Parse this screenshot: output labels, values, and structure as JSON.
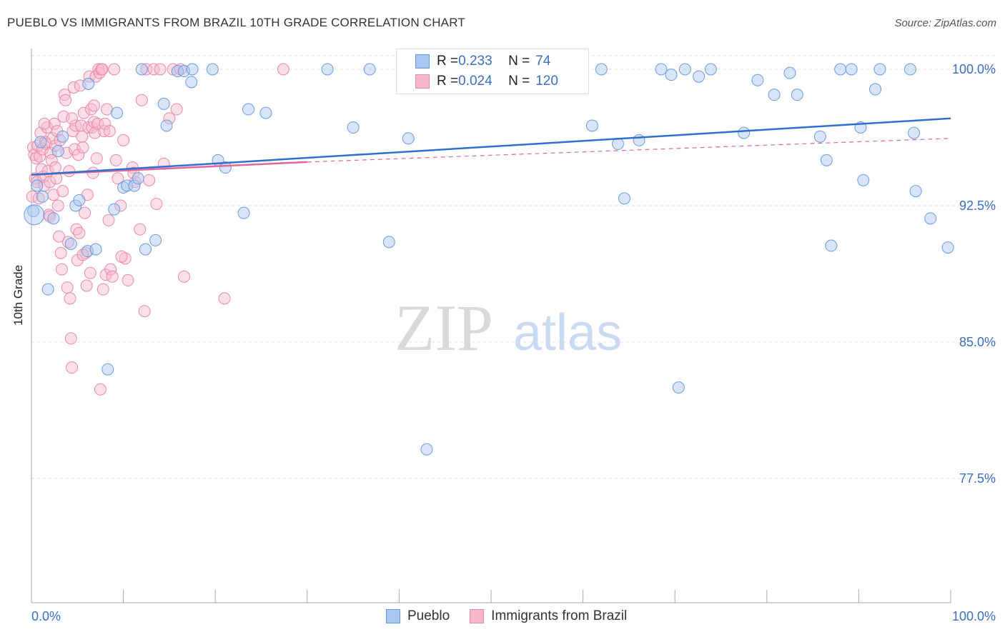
{
  "title": "PUEBLO VS IMMIGRANTS FROM BRAZIL 10TH GRADE CORRELATION CHART",
  "source": "Source: ZipAtlas.com",
  "watermark": {
    "zip": "ZIP",
    "atlas": "atlas"
  },
  "legend": {
    "pueblo": {
      "r_label": "R = ",
      "r": "0.233",
      "n_label": "N = ",
      "n": "74"
    },
    "brazil": {
      "r_label": "R = ",
      "r": "0.024",
      "n_label": "N = ",
      "n": "120"
    }
  },
  "colors": {
    "pueblo_fill": "#a9c6ef",
    "pueblo_stroke": "#6a9be0",
    "pueblo_line": "#2f6fcf",
    "brazil_fill": "#f7b7c9",
    "brazil_stroke": "#e98aa8",
    "brazil_line": "#e0679a",
    "tick_label": "#3a6fc4",
    "grid": "#e3e3e3"
  },
  "chart_data": {
    "type": "scatter",
    "title": "PUEBLO VS IMMIGRANTS FROM BRAZIL 10TH GRADE CORRELATION CHART",
    "xlabel": "",
    "ylabel": "10th Grade",
    "xlim": [
      0,
      100
    ],
    "ylim": [
      70,
      101
    ],
    "x_tick_labels": [
      "0.0%",
      "100.0%"
    ],
    "y_ticks": [
      77.5,
      85.0,
      92.5,
      100.0
    ],
    "y_tick_labels": [
      "77.5%",
      "85.0%",
      "92.5%",
      "100.0%"
    ],
    "grid": "horizontal dashed",
    "legend_position": "bottom-center",
    "series": [
      {
        "name": "Pueblo",
        "r": 0.233,
        "n": 74,
        "trend": {
          "x": [
            0,
            100
          ],
          "y": [
            94.2,
            97.3
          ],
          "extends_dashed": false
        },
        "points": [
          [
            0.2,
            92.2
          ],
          [
            0.6,
            93.6
          ],
          [
            1.0,
            96.0
          ],
          [
            1.2,
            93.0
          ],
          [
            1.8,
            87.9
          ],
          [
            2.4,
            91.8
          ],
          [
            2.9,
            95.5
          ],
          [
            3.4,
            96.3
          ],
          [
            4.3,
            90.4
          ],
          [
            4.8,
            92.5
          ],
          [
            5.2,
            92.8
          ],
          [
            6.1,
            90.0
          ],
          [
            6.2,
            99.2
          ],
          [
            7.0,
            90.1
          ],
          [
            8.3,
            83.5
          ],
          [
            9.0,
            92.3
          ],
          [
            9.3,
            97.6
          ],
          [
            10.0,
            93.5
          ],
          [
            10.4,
            93.6
          ],
          [
            11.2,
            93.6
          ],
          [
            11.6,
            94.0
          ],
          [
            12.0,
            100.0
          ],
          [
            12.4,
            90.1
          ],
          [
            13.5,
            90.6
          ],
          [
            14.4,
            98.1
          ],
          [
            14.7,
            96.9
          ],
          [
            15.9,
            99.9
          ],
          [
            16.6,
            99.9
          ],
          [
            17.4,
            99.3
          ],
          [
            17.5,
            100.0
          ],
          [
            19.7,
            100.0
          ],
          [
            20.3,
            95.0
          ],
          [
            21.1,
            94.6
          ],
          [
            23.1,
            92.1
          ],
          [
            23.6,
            97.8
          ],
          [
            25.5,
            97.6
          ],
          [
            32.2,
            100.0
          ],
          [
            35.0,
            96.8
          ],
          [
            36.8,
            100.0
          ],
          [
            38.9,
            90.5
          ],
          [
            41.0,
            96.2
          ],
          [
            43.0,
            79.1
          ],
          [
            45.0,
            100.0
          ],
          [
            48.0,
            100.0
          ],
          [
            61.0,
            96.9
          ],
          [
            63.8,
            95.9
          ],
          [
            64.5,
            92.9
          ],
          [
            66.1,
            96.1
          ],
          [
            68.5,
            100.0
          ],
          [
            69.6,
            99.7
          ],
          [
            70.4,
            82.5
          ],
          [
            71.1,
            100.0
          ],
          [
            72.6,
            99.6
          ],
          [
            73.9,
            100.0
          ],
          [
            77.5,
            96.5
          ],
          [
            79.0,
            99.4
          ],
          [
            80.8,
            98.6
          ],
          [
            82.5,
            99.8
          ],
          [
            83.3,
            98.6
          ],
          [
            85.8,
            96.3
          ],
          [
            86.5,
            95.0
          ],
          [
            87.0,
            90.3
          ],
          [
            88.0,
            100.0
          ],
          [
            89.2,
            100.0
          ],
          [
            90.2,
            96.8
          ],
          [
            90.5,
            93.9
          ],
          [
            91.8,
            98.9
          ],
          [
            92.3,
            100.0
          ],
          [
            95.6,
            100.0
          ],
          [
            96.0,
            96.5
          ],
          [
            96.2,
            93.3
          ],
          [
            97.8,
            91.8
          ],
          [
            99.7,
            90.2
          ],
          [
            62.0,
            100.0
          ]
        ]
      },
      {
        "name": "Immigrants from Brazil",
        "r": 0.024,
        "n": 120,
        "trend": {
          "x": [
            0,
            30
          ],
          "y": [
            94.2,
            94.9
          ],
          "dashed_to": [
            100,
            96.2
          ]
        },
        "points": [
          [
            0.1,
            93.0
          ],
          [
            0.2,
            95.7
          ],
          [
            0.3,
            95.3
          ],
          [
            0.4,
            94.0
          ],
          [
            0.5,
            95.1
          ],
          [
            0.6,
            93.8
          ],
          [
            0.7,
            95.8
          ],
          [
            0.9,
            95.2
          ],
          [
            1.0,
            96.5
          ],
          [
            1.1,
            94.5
          ],
          [
            1.2,
            95.6
          ],
          [
            1.3,
            94.1
          ],
          [
            1.4,
            93.6
          ],
          [
            1.5,
            96.0
          ],
          [
            1.6,
            95.9
          ],
          [
            1.7,
            96.8
          ],
          [
            1.8,
            94.4
          ],
          [
            1.9,
            92.0
          ],
          [
            2.0,
            93.8
          ],
          [
            2.1,
            95.4
          ],
          [
            2.2,
            95.0
          ],
          [
            2.3,
            96.2
          ],
          [
            2.4,
            93.1
          ],
          [
            2.5,
            97.0
          ],
          [
            2.6,
            95.8
          ],
          [
            2.7,
            94.0
          ],
          [
            2.8,
            96.6
          ],
          [
            2.9,
            92.5
          ],
          [
            3.0,
            90.8
          ],
          [
            3.1,
            96.1
          ],
          [
            3.2,
            89.9
          ],
          [
            3.3,
            89.0
          ],
          [
            3.4,
            93.3
          ],
          [
            3.5,
            97.4
          ],
          [
            3.6,
            98.6
          ],
          [
            3.8,
            95.4
          ],
          [
            3.9,
            88.0
          ],
          [
            4.0,
            90.5
          ],
          [
            4.1,
            94.4
          ],
          [
            4.2,
            87.4
          ],
          [
            4.3,
            85.2
          ],
          [
            4.4,
            83.6
          ],
          [
            4.5,
            96.6
          ],
          [
            4.6,
            99.0
          ],
          [
            4.7,
            95.6
          ],
          [
            4.8,
            96.9
          ],
          [
            4.9,
            91.2
          ],
          [
            5.0,
            89.5
          ],
          [
            5.1,
            95.3
          ],
          [
            5.2,
            91.0
          ],
          [
            5.3,
            99.1
          ],
          [
            5.4,
            96.9
          ],
          [
            5.5,
            96.3
          ],
          [
            5.6,
            95.7
          ],
          [
            5.7,
            97.6
          ],
          [
            5.8,
            92.1
          ],
          [
            5.9,
            89.9
          ],
          [
            6.0,
            88.1
          ],
          [
            6.1,
            93.1
          ],
          [
            6.2,
            96.8
          ],
          [
            6.3,
            99.6
          ],
          [
            6.4,
            88.8
          ],
          [
            6.5,
            97.8
          ],
          [
            6.6,
            96.8
          ],
          [
            6.7,
            94.3
          ],
          [
            6.8,
            97.1
          ],
          [
            6.9,
            96.5
          ],
          [
            7.0,
            99.6
          ],
          [
            7.1,
            95.1
          ],
          [
            7.2,
            97.0
          ],
          [
            7.3,
            100.0
          ],
          [
            7.4,
            99.8
          ],
          [
            7.5,
            82.4
          ],
          [
            7.6,
            100.0
          ],
          [
            7.7,
            100.0
          ],
          [
            7.8,
            87.9
          ],
          [
            7.9,
            96.6
          ],
          [
            8.0,
            97.0
          ],
          [
            8.1,
            88.7
          ],
          [
            8.2,
            97.8
          ],
          [
            8.4,
            91.7
          ],
          [
            8.6,
            89.0
          ],
          [
            8.8,
            88.6
          ],
          [
            9.0,
            100.0
          ],
          [
            9.2,
            95.0
          ],
          [
            9.4,
            94.0
          ],
          [
            9.7,
            92.5
          ],
          [
            10.0,
            96.1
          ],
          [
            10.2,
            89.6
          ],
          [
            10.5,
            88.4
          ],
          [
            11.0,
            94.6
          ],
          [
            11.3,
            93.8
          ],
          [
            11.8,
            91.2
          ],
          [
            12.0,
            98.3
          ],
          [
            12.3,
            86.7
          ],
          [
            12.5,
            100.0
          ],
          [
            12.8,
            93.9
          ],
          [
            13.3,
            100.0
          ],
          [
            13.6,
            92.6
          ],
          [
            14.0,
            100.0
          ],
          [
            14.4,
            94.8
          ],
          [
            15.0,
            97.3
          ],
          [
            15.4,
            100.0
          ],
          [
            15.8,
            97.8
          ],
          [
            16.2,
            100.0
          ],
          [
            16.6,
            88.6
          ],
          [
            21.0,
            87.4
          ],
          [
            27.4,
            100.0
          ],
          [
            5.6,
            89.8
          ],
          [
            3.7,
            98.3
          ],
          [
            9.8,
            89.7
          ],
          [
            0.8,
            92.9
          ],
          [
            1.4,
            97.0
          ],
          [
            2.0,
            91.9
          ],
          [
            6.8,
            98.0
          ],
          [
            4.4,
            97.3
          ],
          [
            8.5,
            96.6
          ],
          [
            11.1,
            94.3
          ],
          [
            2.6,
            94.6
          ]
        ]
      }
    ]
  },
  "bottom_legend": {
    "pueblo": "Pueblo",
    "brazil": "Immigrants from Brazil"
  }
}
